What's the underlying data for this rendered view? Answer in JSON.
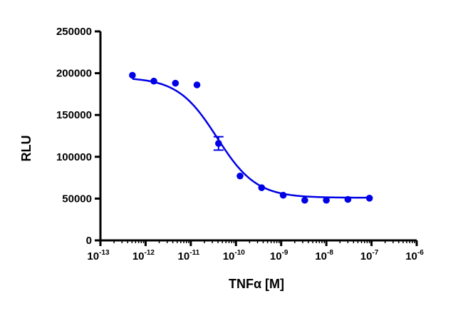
{
  "chart_data": {
    "type": "scatter",
    "title": "",
    "xlabel": "TNFα [M]",
    "ylabel": "RLU",
    "x_scale": "log10",
    "xlim": [
      1e-13,
      1e-06
    ],
    "ylim": [
      0,
      250000
    ],
    "grid": false,
    "legend": "none",
    "x_ticks": [
      {
        "base": "10",
        "exp": "-13",
        "value": 1e-13
      },
      {
        "base": "10",
        "exp": "-12",
        "value": 1e-12
      },
      {
        "base": "10",
        "exp": "-11",
        "value": 1e-11
      },
      {
        "base": "10",
        "exp": "-10",
        "value": 1e-10
      },
      {
        "base": "10",
        "exp": "-9",
        "value": 1e-09
      },
      {
        "base": "10",
        "exp": "-8",
        "value": 1e-08
      },
      {
        "base": "10",
        "exp": "-7",
        "value": 1e-07
      },
      {
        "base": "10",
        "exp": "-6",
        "value": 1e-06
      }
    ],
    "y_ticks": [
      {
        "label": "0",
        "value": 0
      },
      {
        "label": "50000",
        "value": 50000
      },
      {
        "label": "100000",
        "value": 100000
      },
      {
        "label": "150000",
        "value": 150000
      },
      {
        "label": "200000",
        "value": 200000
      },
      {
        "label": "250000",
        "value": 250000
      }
    ],
    "series": [
      {
        "color": "#0000e6",
        "points": [
          {
            "x": 5.1e-13,
            "y": 197500
          },
          {
            "x": 1.52e-12,
            "y": 190500
          },
          {
            "x": 4.57e-12,
            "y": 188000
          },
          {
            "x": 1.37e-11,
            "y": 186000
          },
          {
            "x": 4.11e-11,
            "y": 116000,
            "error": 8000
          },
          {
            "x": 1.23e-10,
            "y": 77000
          },
          {
            "x": 3.7e-10,
            "y": 63000
          },
          {
            "x": 1.11e-09,
            "y": 54000
          },
          {
            "x": 3.33e-09,
            "y": 48000
          },
          {
            "x": 1e-08,
            "y": 48000
          },
          {
            "x": 3e-08,
            "y": 49000
          },
          {
            "x": 9e-08,
            "y": 50500
          }
        ],
        "fit": {
          "model": "four-parameter logistic",
          "top": 195000,
          "bottom": 51000,
          "logEC50": -10.42,
          "hill": -1.0,
          "x_range": [
            5.1e-13,
            9e-08
          ]
        }
      }
    ]
  }
}
